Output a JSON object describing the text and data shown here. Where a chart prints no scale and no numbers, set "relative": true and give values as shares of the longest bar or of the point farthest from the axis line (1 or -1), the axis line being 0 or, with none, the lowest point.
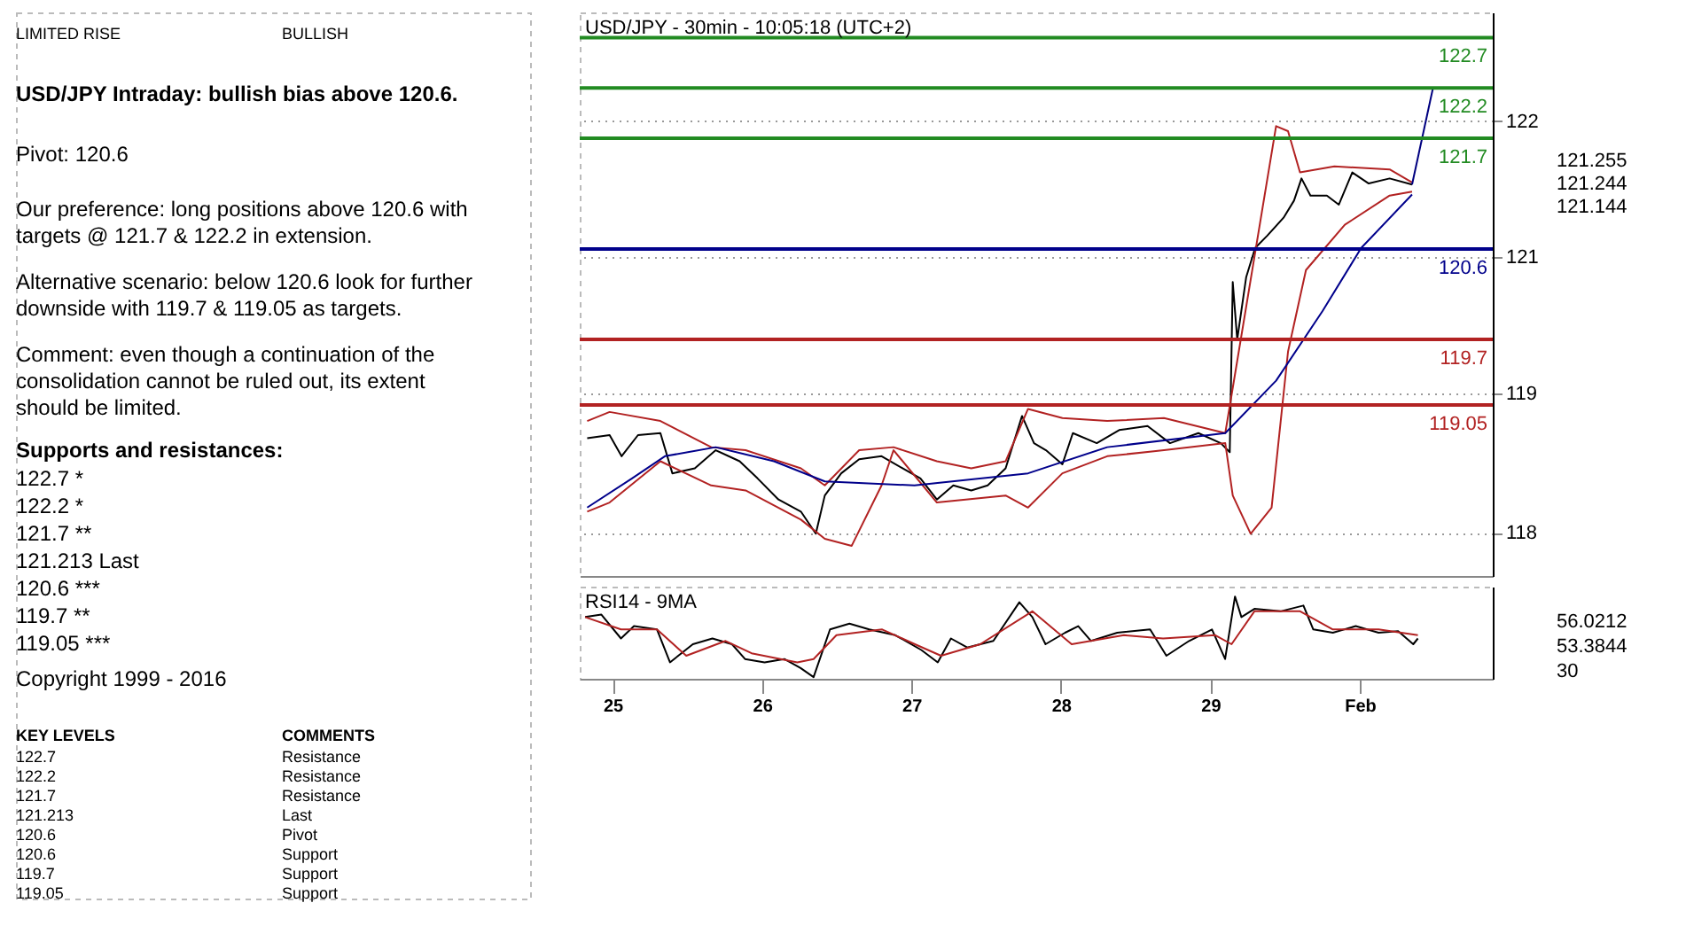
{
  "chart_data": [
    {
      "type": "line",
      "title": "USD/JPY - 30min - 10:05:18 (UTC+2)",
      "xlim": [
        24.78,
        30.89
      ],
      "ylim": [
        117.35,
        122.95
      ],
      "yticks": [
        {
          "value": 117.78,
          "label": "118"
        },
        {
          "value": 119.16,
          "label": "119"
        },
        {
          "value": 120.52,
          "label": "121"
        },
        {
          "value": 121.87,
          "label": "122"
        }
      ],
      "tick_labels": "y",
      "grid": "y",
      "series": [
        {
          "color": "#000000",
          "x": [
            24.83,
            24.98,
            25.06,
            25.17,
            25.32,
            25.4,
            25.55,
            25.69,
            25.85,
            25.97,
            26.11,
            26.26,
            26.36,
            26.42,
            26.53,
            26.65,
            26.8,
            26.94,
            27.06,
            27.17,
            27.28,
            27.4,
            27.51,
            27.63,
            27.74,
            27.82,
            27.9,
            28.01,
            28.08,
            28.24,
            28.39,
            28.58,
            28.73,
            28.92,
            29.07,
            29.13,
            29.15,
            29.18,
            29.24,
            29.3,
            29.38,
            29.49,
            29.56,
            29.61,
            29.67,
            29.78,
            29.86,
            29.95,
            30.06,
            30.2,
            30.35
          ],
          "values": [
            118.72,
            118.75,
            118.54,
            118.75,
            118.77,
            118.37,
            118.42,
            118.6,
            118.49,
            118.32,
            118.11,
            117.99,
            117.77,
            118.15,
            118.37,
            118.51,
            118.54,
            118.42,
            118.32,
            118.11,
            118.25,
            118.2,
            118.25,
            118.42,
            118.94,
            118.67,
            118.6,
            118.46,
            118.77,
            118.67,
            118.8,
            118.84,
            118.67,
            118.77,
            118.67,
            118.58,
            120.27,
            119.7,
            120.32,
            120.61,
            120.73,
            120.91,
            121.08,
            121.3,
            121.13,
            121.13,
            121.04,
            121.36,
            121.25,
            121.3,
            121.24
          ]
        },
        {
          "color": "#b22222",
          "x": [
            24.83,
            24.98,
            25.32,
            25.66,
            25.89,
            26.26,
            26.42,
            26.65,
            26.88,
            27.17,
            27.4,
            27.63,
            27.78,
            28.01,
            28.31,
            28.69,
            29.1,
            29.44,
            29.52,
            29.6,
            29.83,
            30.2,
            30.35
          ],
          "values": [
            118.89,
            118.98,
            118.89,
            118.63,
            118.6,
            118.42,
            118.25,
            118.6,
            118.63,
            118.49,
            118.42,
            118.49,
            119.01,
            118.92,
            118.89,
            118.92,
            118.77,
            121.82,
            121.77,
            121.36,
            121.42,
            121.39,
            121.26
          ]
        },
        {
          "color": "#b22222",
          "x": [
            24.83,
            24.98,
            25.32,
            25.66,
            25.89,
            26.26,
            26.42,
            26.6,
            26.8,
            26.88,
            27.17,
            27.63,
            27.78,
            28.01,
            28.31,
            28.69,
            29.1,
            29.15,
            29.27,
            29.41,
            29.52,
            29.64,
            29.9,
            30.2,
            30.35
          ],
          "values": [
            117.99,
            118.08,
            118.49,
            118.25,
            118.2,
            117.91,
            117.72,
            117.65,
            118.25,
            118.6,
            118.08,
            118.15,
            118.03,
            118.37,
            118.54,
            118.6,
            118.67,
            118.15,
            117.77,
            118.03,
            119.58,
            120.39,
            120.84,
            121.13,
            121.17
          ]
        },
        {
          "color": "#00008b",
          "x": [
            24.83,
            25.13,
            25.35,
            25.69,
            26.08,
            26.42,
            27.02,
            27.78,
            28.31,
            29.1,
            29.44,
            29.75,
            30.01,
            30.35
          ],
          "values": [
            118.03,
            118.32,
            118.54,
            118.63,
            118.49,
            118.29,
            118.25,
            118.37,
            118.63,
            118.77,
            119.29,
            119.98,
            120.61,
            121.14
          ]
        },
        {
          "color": "#000080",
          "x": [
            30.35,
            30.49
          ],
          "values": [
            121.24,
            122.2
          ]
        }
      ],
      "ref_lines": [
        {
          "axis": "y",
          "value": 122.7,
          "label": "122.7",
          "color": "#228b22"
        },
        {
          "axis": "y",
          "value": 122.2,
          "label": "122.2",
          "color": "#228b22"
        },
        {
          "axis": "y",
          "value": 121.7,
          "label": "121.7",
          "color": "#228b22"
        },
        {
          "axis": "y",
          "value": 120.6,
          "label": "120.6",
          "color": "#00008b"
        },
        {
          "axis": "y",
          "value": 119.7,
          "label": "119.7",
          "color": "#b22222"
        },
        {
          "axis": "y",
          "value": 119.05,
          "label": "119.05",
          "color": "#b22222"
        }
      ],
      "annotations": [
        "LIMITED RISE",
        "BULLISH",
        "USD/JPY Intraday: bullish bias above 120.6.",
        "Pivot: 120.6",
        "Our preference: long positions above 120.6 with targets @ 121.7 & 122.2 in extension.",
        "Alternative scenario: below 120.6 look for further downside with 119.7 & 119.05 as targets.",
        "Comment: even though a continuation of the consolidation cannot be ruled out, its extent should be limited.",
        "Supports and resistances:",
        "122.7 *",
        "122.2 *",
        "121.7 **",
        "121.213 Last",
        "120.6 ***",
        "119.7 **",
        "119.05 ***",
        "Copyright 1999 - 2016",
        "KEY LEVELS",
        "COMMENTS",
        "122.7",
        "Resistance",
        "122.2",
        "Resistance",
        "121.7",
        "Resistance",
        "121.213",
        "Last",
        "120.6",
        "Pivot",
        "120.6",
        "Support",
        "119.7",
        "Support",
        "119.05",
        "Support",
        "121.255",
        "121.244",
        "121.144"
      ]
    },
    {
      "type": "line",
      "title": "RSI14 - 9MA",
      "relative": true,
      "xlim": [
        24.78,
        30.89
      ],
      "xticks": [
        25,
        26,
        27,
        28,
        29,
        {
          "value": 30,
          "label": "Feb"
        }
      ],
      "annotations": [
        "56.0212",
        "53.3844",
        "30"
      ],
      "series": [
        {
          "color": "#000000",
          "x": [
            24.816,
            24.925,
            25.056,
            25.143,
            25.297,
            25.384,
            25.537,
            25.668,
            25.799,
            25.886,
            26.017,
            26.149,
            26.258,
            26.345,
            26.455,
            26.585,
            26.717,
            26.892,
            27.066,
            27.176,
            27.264,
            27.373,
            27.548,
            27.722,
            27.809,
            27.897,
            28.028,
            28.116,
            28.202,
            28.377,
            28.597,
            28.706,
            28.858,
            29.011,
            29.099,
            29.165,
            29.208,
            29.295,
            29.47,
            29.623,
            29.689,
            29.82,
            29.973,
            30.126,
            30.257,
            30.358,
            30.389
          ],
          "values": [
            0.75,
            0.78,
            0.49,
            0.64,
            0.6,
            0.2,
            0.42,
            0.49,
            0.42,
            0.24,
            0.2,
            0.24,
            0.13,
            0.02,
            0.6,
            0.67,
            0.6,
            0.53,
            0.35,
            0.2,
            0.49,
            0.38,
            0.46,
            0.93,
            0.75,
            0.42,
            0.56,
            0.64,
            0.46,
            0.56,
            0.6,
            0.28,
            0.46,
            0.6,
            0.24,
            1,
            0.75,
            0.85,
            0.82,
            0.89,
            0.6,
            0.56,
            0.64,
            0.56,
            0.58,
            0.42,
            0.49
          ]
        },
        {
          "color": "#b22222",
          "x": [
            24.816,
            25.056,
            25.297,
            25.493,
            25.756,
            25.93,
            26.236,
            26.345,
            26.498,
            26.804,
            27.023,
            27.198,
            27.46,
            27.809,
            28.072,
            28.422,
            28.684,
            29.033,
            29.142,
            29.295,
            29.601,
            29.82,
            30.126,
            30.389
          ],
          "values": [
            0.75,
            0.6,
            0.6,
            0.28,
            0.46,
            0.31,
            0.2,
            0.24,
            0.53,
            0.6,
            0.42,
            0.28,
            0.42,
            0.82,
            0.42,
            0.53,
            0.49,
            0.53,
            0.42,
            0.82,
            0.82,
            0.6,
            0.6,
            0.53
          ]
        }
      ]
    }
  ]
}
